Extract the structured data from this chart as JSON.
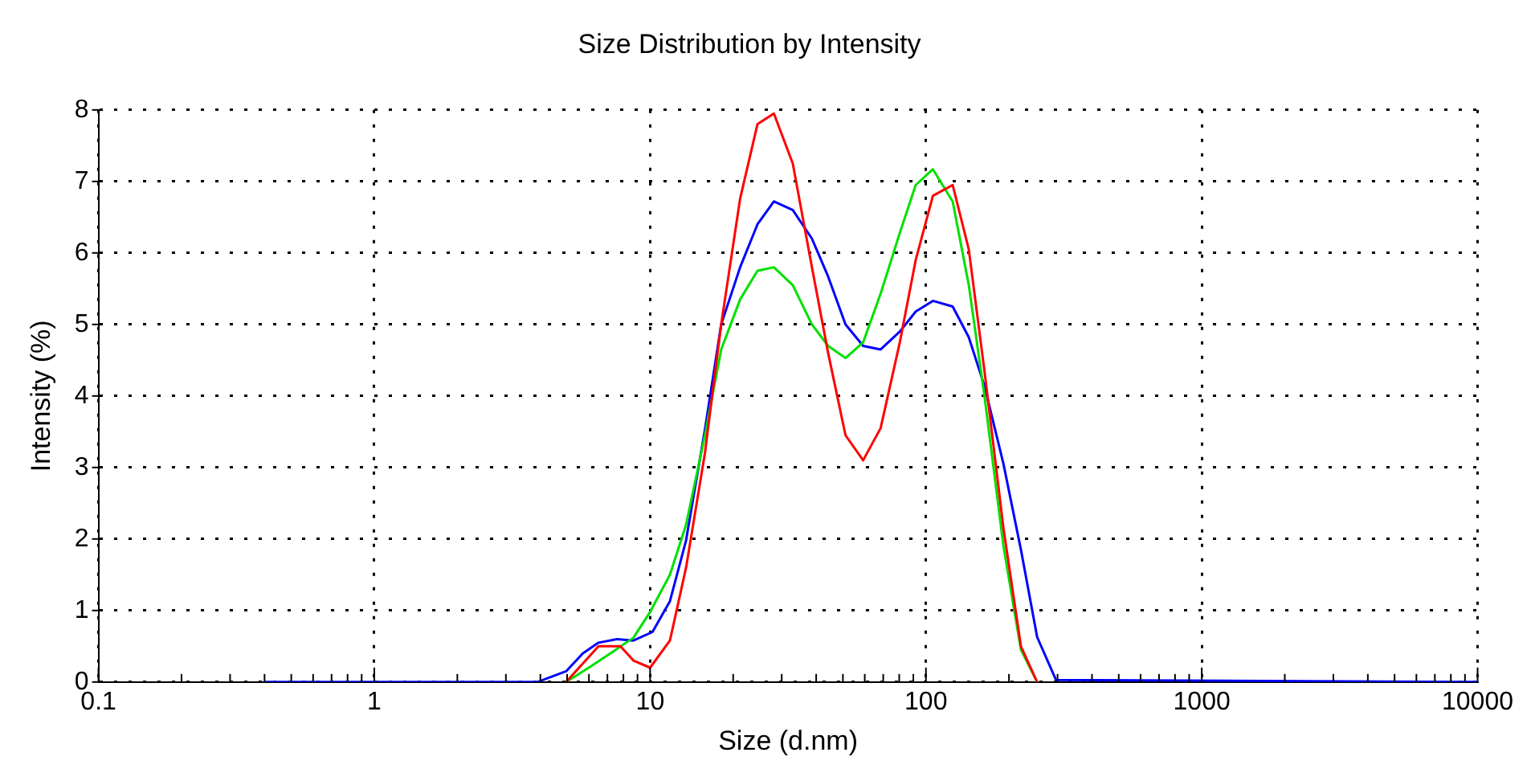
{
  "chart_data": {
    "type": "line",
    "title": "Size Distribution by Intensity",
    "xlabel": "Size (d.nm)",
    "ylabel": "Intensity (%)",
    "log": "x",
    "grid": true,
    "legend": false,
    "line_style": "solid",
    "marker": "none",
    "xlim": [
      0.1,
      10000
    ],
    "ylim": [
      0,
      8
    ],
    "yticks": [
      0,
      1,
      2,
      3,
      4,
      5,
      6,
      7,
      8
    ],
    "xticks": [
      0.1,
      {
        "value": 0.2,
        "label": null
      },
      {
        "value": 0.3,
        "label": null
      },
      {
        "value": 0.4,
        "label": null
      },
      {
        "value": 0.5,
        "label": null
      },
      {
        "value": 0.6,
        "label": null
      },
      {
        "value": 0.7,
        "label": null
      },
      {
        "value": 0.8,
        "label": null
      },
      {
        "value": 0.9,
        "label": null
      },
      1,
      {
        "value": 2,
        "label": null
      },
      {
        "value": 3,
        "label": null
      },
      {
        "value": 4,
        "label": null
      },
      {
        "value": 5,
        "label": null
      },
      {
        "value": 6,
        "label": null
      },
      {
        "value": 7,
        "label": null
      },
      {
        "value": 8,
        "label": null
      },
      {
        "value": 9,
        "label": null
      },
      10,
      {
        "value": 20,
        "label": null
      },
      {
        "value": 30,
        "label": null
      },
      {
        "value": 40,
        "label": null
      },
      {
        "value": 50,
        "label": null
      },
      {
        "value": 60,
        "label": null
      },
      {
        "value": 70,
        "label": null
      },
      {
        "value": 80,
        "label": null
      },
      {
        "value": 90,
        "label": null
      },
      100,
      {
        "value": 200,
        "label": null
      },
      {
        "value": 300,
        "label": null
      },
      {
        "value": 400,
        "label": null
      },
      {
        "value": 500,
        "label": null
      },
      {
        "value": 600,
        "label": null
      },
      {
        "value": 700,
        "label": null
      },
      {
        "value": 800,
        "label": null
      },
      {
        "value": 900,
        "label": null
      },
      1000,
      {
        "value": 2000,
        "label": null
      },
      {
        "value": 3000,
        "label": null
      },
      {
        "value": 4000,
        "label": null
      },
      {
        "value": 5000,
        "label": null
      },
      {
        "value": 6000,
        "label": null
      },
      {
        "value": 7000,
        "label": null
      },
      {
        "value": 8000,
        "label": null
      },
      {
        "value": 9000,
        "label": null
      },
      10000
    ],
    "series": [
      {
        "color": "#ff0000",
        "x": [
          4.96,
          6.5,
          7.8,
          8.7,
          10,
          11.8,
          13.5,
          15.8,
          18.1,
          21.2,
          24.5,
          28.1,
          32.9,
          38.6,
          44.2,
          51.1,
          59.2,
          68.5,
          80.4,
          91.8,
          106,
          125,
          143,
          163,
          191,
          221,
          253
        ],
        "values": [
          0,
          0.5,
          0.5,
          0.3,
          0.2,
          0.58,
          1.6,
          3.2,
          5.0,
          6.76,
          7.8,
          7.95,
          7.25,
          5.8,
          4.6,
          3.45,
          3.1,
          3.55,
          4.75,
          5.9,
          6.8,
          6.95,
          6.05,
          4.35,
          2.15,
          0.5,
          0
        ]
      },
      {
        "color": "#00e000",
        "x": [
          4.96,
          6.1,
          7.3,
          8.7,
          10,
          11.8,
          13.5,
          15.8,
          18.1,
          21.2,
          24.5,
          28.1,
          32.9,
          38.6,
          44.2,
          51.1,
          59.2,
          68.5,
          80.4,
          91.8,
          106,
          125,
          143,
          163,
          191,
          221,
          253
        ],
        "values": [
          0,
          0.22,
          0.42,
          0.62,
          0.98,
          1.5,
          2.2,
          3.45,
          4.65,
          5.35,
          5.75,
          5.8,
          5.55,
          5.0,
          4.7,
          4.53,
          4.75,
          5.43,
          6.28,
          6.95,
          7.17,
          6.72,
          5.55,
          4.0,
          1.9,
          0.45,
          0
        ]
      },
      {
        "color": "#0000ff",
        "x": [
          0.4,
          3.9,
          4.96,
          5.7,
          6.5,
          7.6,
          8.7,
          10.2,
          11.8,
          13.5,
          15.8,
          18.1,
          21.2,
          24.5,
          28.1,
          32.9,
          38.6,
          44.2,
          51.1,
          59.2,
          68.5,
          80.4,
          91.8,
          106,
          125,
          143,
          163,
          191,
          221,
          253,
          296,
          10000
        ],
        "values": [
          0,
          0,
          0.15,
          0.4,
          0.55,
          0.6,
          0.58,
          0.7,
          1.13,
          1.98,
          3.53,
          5.0,
          5.8,
          6.4,
          6.72,
          6.6,
          6.2,
          5.67,
          5.0,
          4.7,
          4.65,
          4.9,
          5.18,
          5.33,
          5.25,
          4.82,
          4.14,
          3.05,
          1.85,
          0.63,
          0.03,
          0
        ]
      }
    ]
  }
}
